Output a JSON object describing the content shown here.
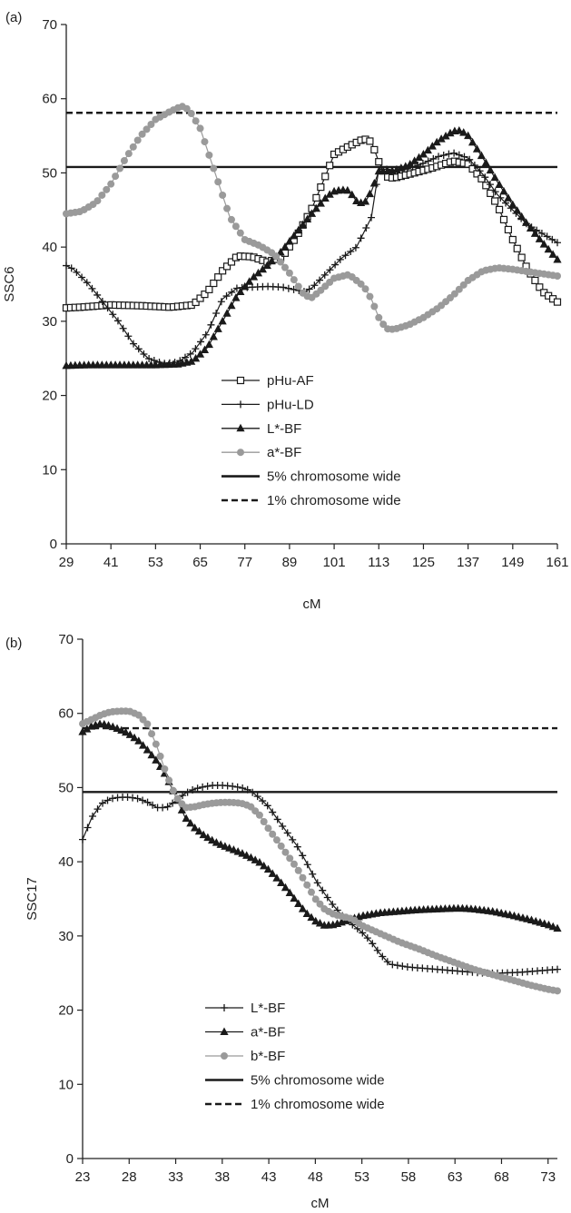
{
  "colors": {
    "black": "#1a1a1a",
    "gray": "#9a9a9a",
    "axis": "#222222"
  },
  "chart_data": [
    {
      "type": "line",
      "panel_label": "(a)",
      "xlabel": "cM",
      "ylabel": "SSC6",
      "xlim": [
        29,
        161
      ],
      "ylim": [
        0,
        70
      ],
      "xticks": [
        29,
        41,
        53,
        65,
        77,
        89,
        101,
        113,
        125,
        137,
        149,
        161
      ],
      "yticks": [
        0,
        10,
        20,
        30,
        40,
        50,
        60,
        70
      ],
      "legend_position": "bottom-center",
      "thresholds": [
        {
          "name": "5% chromosome wide",
          "value": 50.8,
          "dash": "solid",
          "color": "#1a1a1a"
        },
        {
          "name": "1% chromosome wide",
          "value": 58.1,
          "dash": "dashed",
          "color": "#1a1a1a"
        }
      ],
      "legend_order": [
        "pHu-AF",
        "pHu-LD",
        "L*-BF",
        "a*-BF",
        "5% chromosome wide",
        "1% chromosome wide"
      ],
      "series": [
        {
          "name": "pHu-AF",
          "marker": "square-open",
          "color": "#1a1a1a",
          "x": [
            29,
            33,
            41,
            49,
            57,
            63,
            67,
            71,
            75,
            79,
            83,
            87,
            91,
            95,
            99,
            101,
            105,
            109,
            111,
            113,
            115,
            117,
            121,
            127,
            133,
            137,
            141,
            145,
            149,
            153,
            157,
            161
          ],
          "y": [
            31.8,
            31.9,
            32.2,
            32.1,
            31.9,
            32.2,
            34,
            36.8,
            38.8,
            38.7,
            38,
            38.6,
            41.5,
            45.2,
            50,
            52.5,
            53.6,
            54.6,
            54.2,
            51.5,
            49.5,
            49.3,
            49.8,
            50.6,
            51.6,
            51.2,
            49,
            45.5,
            41,
            37,
            34,
            32.6
          ]
        },
        {
          "name": "pHu-LD",
          "marker": "plus",
          "color": "#1a1a1a",
          "x": [
            29,
            31,
            35,
            39,
            43,
            47,
            51,
            55,
            59,
            63,
            67,
            71,
            75,
            79,
            83,
            87,
            91,
            93,
            95,
            99,
            103,
            107,
            111,
            113,
            115,
            117,
            121,
            125,
            129,
            133,
            137,
            141,
            145,
            149,
            153,
            157,
            161
          ],
          "y": [
            37.5,
            37,
            35,
            32.5,
            30,
            27,
            25,
            24.3,
            24.5,
            25.8,
            28.5,
            33,
            34.5,
            34.6,
            34.7,
            34.6,
            34.2,
            34,
            34.5,
            36.5,
            38.5,
            40,
            44,
            50.5,
            50.5,
            50.2,
            50.6,
            51.3,
            52.2,
            52.7,
            52,
            49.8,
            47,
            45,
            43,
            41.8,
            40.6
          ]
        },
        {
          "name": "L*-BF",
          "marker": "triangle",
          "color": "#1a1a1a",
          "x": [
            29,
            35,
            41,
            47,
            53,
            59,
            63,
            67,
            71,
            75,
            79,
            83,
            87,
            91,
            95,
            99,
            101,
            103,
            105,
            107,
            109,
            111,
            113,
            115,
            117,
            121,
            125,
            129,
            133,
            135,
            137,
            141,
            145,
            149,
            153,
            157,
            161
          ],
          "y": [
            24,
            24.1,
            24.1,
            24.1,
            24.1,
            24.2,
            24.6,
            26.5,
            30,
            33.5,
            35.8,
            37.5,
            39.5,
            42,
            44.5,
            46.8,
            47.5,
            47.7,
            47.6,
            46.2,
            45.8,
            47.5,
            50.2,
            50.2,
            50.3,
            51,
            52.5,
            54.3,
            55.6,
            55.7,
            55,
            52,
            48.7,
            45.7,
            43,
            40.6,
            38.3
          ]
        },
        {
          "name": "a*-BF",
          "marker": "circle",
          "color": "#9a9a9a",
          "x": [
            29,
            33,
            37,
            41,
            45,
            49,
            53,
            57,
            60,
            62,
            65,
            69,
            73,
            77,
            81,
            85,
            89,
            93,
            95,
            97,
            101,
            105,
            109,
            111,
            113,
            115,
            117,
            121,
            125,
            129,
            133,
            137,
            141,
            145,
            149,
            153,
            157,
            161
          ],
          "y": [
            44.5,
            44.8,
            46,
            48.5,
            52,
            55,
            57.2,
            58.3,
            59,
            58.5,
            56,
            50,
            44,
            41,
            40.2,
            39,
            36.5,
            33.5,
            33.2,
            34,
            35.8,
            36.3,
            34.7,
            33,
            30.5,
            29,
            28.9,
            29.5,
            30.5,
            31.8,
            33.5,
            35.5,
            36.8,
            37.2,
            37,
            36.7,
            36.4,
            36.1
          ]
        }
      ]
    },
    {
      "type": "line",
      "panel_label": "(b)",
      "xlabel": "cM",
      "ylabel": "SSC17",
      "xlim": [
        23,
        74
      ],
      "ylim": [
        0,
        70
      ],
      "xticks": [
        23,
        28,
        33,
        38,
        43,
        48,
        53,
        58,
        63,
        68,
        73
      ],
      "yticks": [
        0,
        10,
        20,
        30,
        40,
        50,
        60,
        70
      ],
      "legend_position": "bottom-center",
      "thresholds": [
        {
          "name": "5% chromosome wide",
          "value": 49.4,
          "dash": "solid",
          "color": "#1a1a1a"
        },
        {
          "name": "1% chromosome wide",
          "value": 58,
          "dash": "dashed",
          "color": "#1a1a1a"
        }
      ],
      "legend_order": [
        "L*-BF",
        "a*-BF",
        "b*-BF",
        "5% chromosome wide",
        "1% chromosome wide"
      ],
      "series": [
        {
          "name": "L*-BF",
          "marker": "plus",
          "color": "#1a1a1a",
          "x": [
            23,
            24,
            25,
            26,
            27,
            28,
            29,
            30,
            31,
            32,
            33,
            34,
            35,
            36,
            37,
            38,
            39,
            40,
            41,
            42,
            43,
            44,
            45,
            46,
            47,
            48,
            49,
            50,
            51,
            52,
            53,
            54,
            55,
            56,
            58,
            60,
            62,
            64,
            66,
            68,
            70,
            72,
            74
          ],
          "y": [
            43,
            46,
            47.8,
            48.5,
            48.7,
            48.7,
            48.5,
            48,
            47.3,
            47.3,
            48.2,
            49.2,
            49.8,
            50.1,
            50.3,
            50.3,
            50.2,
            50,
            49.6,
            48.6,
            47.4,
            45.6,
            43.9,
            42.2,
            40,
            37.6,
            35.7,
            34,
            32.6,
            31.5,
            30.5,
            29.2,
            27.5,
            26.2,
            25.8,
            25.6,
            25.4,
            25.2,
            25,
            25,
            25.1,
            25.3,
            25.5
          ]
        },
        {
          "name": "a*-BF",
          "marker": "triangle",
          "color": "#1a1a1a",
          "x": [
            23,
            24,
            25,
            26,
            27,
            28,
            29,
            30,
            31,
            32,
            33,
            34,
            35,
            36,
            37,
            38,
            39,
            40,
            41,
            42,
            43,
            44,
            45,
            46,
            47,
            48,
            49,
            50,
            51,
            52,
            53,
            55,
            57,
            59,
            61,
            63,
            64,
            65,
            67,
            69,
            71,
            73,
            74
          ],
          "y": [
            57.5,
            58.3,
            58.6,
            58.3,
            57.8,
            57.2,
            56.3,
            55,
            53.5,
            51.5,
            48.8,
            46,
            44.6,
            43.6,
            42.8,
            42.2,
            41.7,
            41.2,
            40.6,
            39.9,
            38.9,
            37.6,
            36.2,
            34.6,
            33.1,
            32,
            31.4,
            31.5,
            31.9,
            32.3,
            32.7,
            33.1,
            33.3,
            33.5,
            33.6,
            33.7,
            33.7,
            33.6,
            33.3,
            32.8,
            32.2,
            31.5,
            31
          ]
        },
        {
          "name": "b*-BF",
          "marker": "circle",
          "color": "#9a9a9a",
          "x": [
            23,
            24,
            25,
            26,
            27,
            28,
            29,
            30,
            31,
            32,
            33,
            34,
            35,
            36,
            37,
            38,
            39,
            40,
            41,
            42,
            43,
            44,
            45,
            46,
            47,
            48,
            49,
            50,
            51,
            52,
            53,
            55,
            57,
            59,
            61,
            63,
            65,
            67,
            69,
            71,
            73,
            74
          ],
          "y": [
            58.6,
            59.2,
            59.8,
            60.2,
            60.3,
            60.3,
            59.8,
            58.5,
            55.5,
            51.8,
            48.8,
            47.3,
            47.4,
            47.7,
            47.9,
            48,
            48,
            47.9,
            47.5,
            46.3,
            44.4,
            42.7,
            40.9,
            39.2,
            37.1,
            35,
            33.6,
            32.9,
            32.6,
            32.3,
            31.4,
            30.3,
            29.2,
            28.3,
            27.3,
            26.4,
            25.5,
            24.8,
            24.1,
            23.4,
            22.8,
            22.6
          ]
        }
      ]
    }
  ]
}
